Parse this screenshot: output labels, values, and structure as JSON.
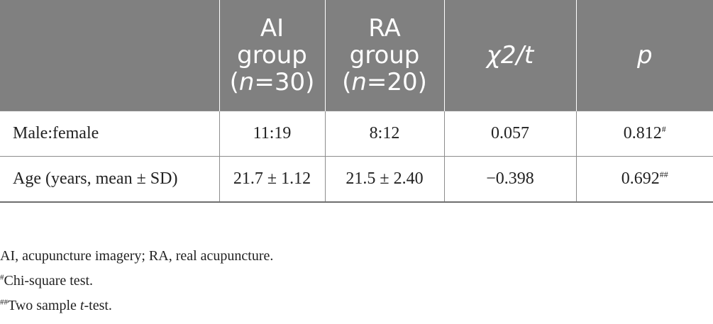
{
  "table": {
    "header": {
      "col0": "",
      "col1_line1": "AI",
      "col1_line2": "group",
      "col1_open": "(",
      "col1_n": "n",
      "col1_eq": "=30)",
      "col2_line1": "RA",
      "col2_line2": "group",
      "col2_open": "(",
      "col2_n": "n",
      "col2_eq": "=20)",
      "col3": "χ2/t",
      "col4": "p"
    },
    "rows": [
      {
        "label": "Male:female",
        "ai": "11:19",
        "ra": "8:12",
        "stat": "0.057",
        "p": "0.812",
        "p_mark": "#"
      },
      {
        "label": "Age (years, mean ± SD)",
        "ai": "21.7 ± 1.12",
        "ra": "21.5 ± 2.40",
        "stat": "−0.398",
        "p": "0.692",
        "p_mark": "##"
      }
    ]
  },
  "footnotes": {
    "abbrev": "AI, acupuncture imagery; RA, real acupuncture.",
    "note1_mark": "#",
    "note1_text": "Chi-square test.",
    "note2_mark": "##",
    "note2_pre": "Two sample ",
    "note2_t": "t",
    "note2_post": "-test."
  }
}
